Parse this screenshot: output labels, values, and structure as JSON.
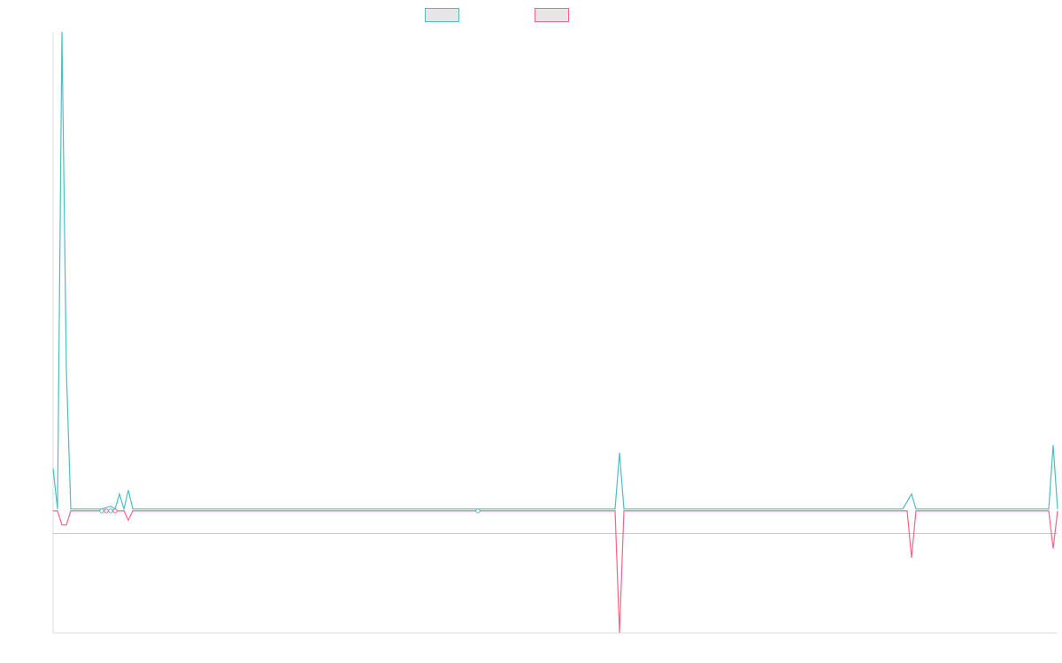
{
  "chart_data": {
    "type": "line",
    "title": "",
    "xlabel": "",
    "ylabel": "",
    "grid": false,
    "legend_position": "top-center",
    "point_count": 227,
    "ylim": [
      -1.3,
      5.1
    ],
    "series": [
      {
        "color": "#4bc0c0",
        "points": [
          [
            0,
            0.45
          ],
          [
            1,
            0.02
          ],
          [
            2,
            5.1
          ],
          [
            3,
            1.5
          ],
          [
            4,
            0.02
          ],
          [
            11,
            0.02
          ],
          [
            13,
            0.05
          ],
          [
            14,
            0.02
          ],
          [
            15,
            0.18
          ],
          [
            16,
            0.02
          ],
          [
            17,
            0.22
          ],
          [
            18,
            0.02
          ],
          [
            127,
            0.02
          ],
          [
            128,
            0.62
          ],
          [
            129,
            0.02
          ],
          [
            192,
            0.02
          ],
          [
            194,
            0.18
          ],
          [
            195,
            0.02
          ],
          [
            225,
            0.02
          ],
          [
            226,
            0.7
          ],
          [
            227,
            0.02
          ]
        ]
      },
      {
        "color": "#ff6384",
        "points": [
          [
            0,
            0.0
          ],
          [
            1,
            0.0
          ],
          [
            2,
            -0.15
          ],
          [
            3,
            -0.15
          ],
          [
            4,
            0.0
          ],
          [
            16,
            0.0
          ],
          [
            17,
            -0.1
          ],
          [
            18,
            0.0
          ],
          [
            127,
            0.0
          ],
          [
            128,
            -1.3
          ],
          [
            129,
            0.0
          ],
          [
            193,
            0.0
          ],
          [
            194,
            -0.5
          ],
          [
            195,
            0.0
          ],
          [
            225,
            0.0
          ],
          [
            226,
            -0.4
          ],
          [
            227,
            0.0
          ]
        ]
      }
    ],
    "markers": [
      {
        "series": 0,
        "x": 11
      },
      {
        "series": 0,
        "x": 13
      },
      {
        "series": 1,
        "x": 12
      },
      {
        "series": 1,
        "x": 14
      },
      {
        "series": 0,
        "x": 96
      }
    ]
  }
}
